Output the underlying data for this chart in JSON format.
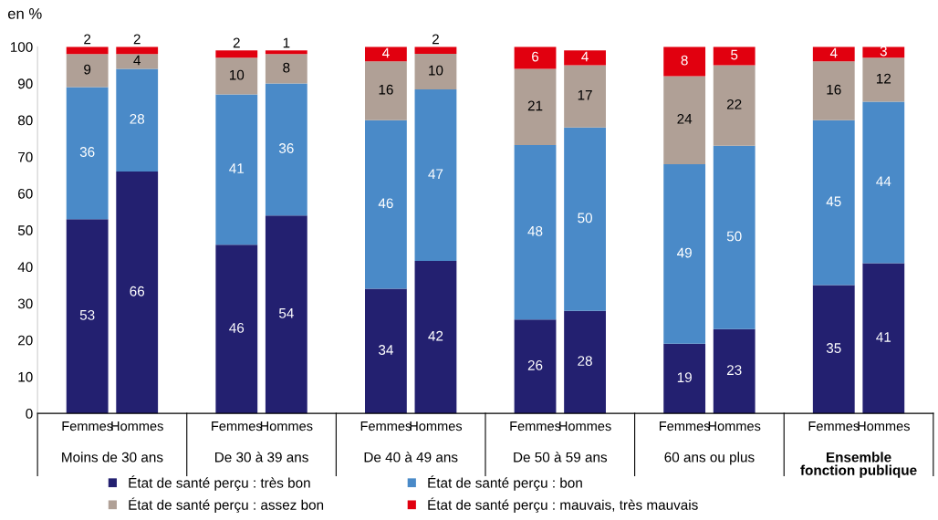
{
  "chart_data": {
    "type": "bar",
    "stacked": true,
    "ylabel": "en %",
    "categories": [
      "Femmes",
      "Hommes",
      "Femmes",
      "Hommes",
      "Femmes",
      "Hommes",
      "Femmes",
      "Hommes",
      "Femmes",
      "Hommes",
      "Femmes",
      "Hommes"
    ],
    "annotations": [
      "Moins de 30 ans",
      "De 30 à 39 ans",
      "De 40 à 49 ans",
      "De 50 à 59 ans",
      "60 ans ou plus",
      "Ensemble\nfonction publique"
    ],
    "series": [
      {
        "name": "État de santé perçu : très bon",
        "color": "#232070",
        "value_labels": [
          "53",
          "66",
          "46",
          "54",
          "34",
          "42",
          "26",
          "28",
          "19",
          "23",
          "35",
          "41"
        ],
        "values": [
          53,
          66,
          46,
          54,
          34,
          41.6,
          25.6,
          28,
          19,
          23,
          35,
          41
        ]
      },
      {
        "name": "État de santé perçu : bon",
        "color": "#4a8ac8",
        "value_labels": [
          "36",
          "28",
          "41",
          "36",
          "46",
          "47",
          "48",
          "50",
          "49",
          "50",
          "45",
          "44"
        ],
        "values": [
          36,
          28,
          41,
          36,
          46,
          46.8,
          47.6,
          50,
          49,
          50,
          45,
          44
        ]
      },
      {
        "name": "État de santé perçu : assez bon",
        "color": "#b0a096",
        "value_labels": [
          "9",
          "4",
          "10",
          "8",
          "16",
          "10",
          "21",
          "17",
          "24",
          "22",
          "16",
          "12"
        ],
        "values": [
          9,
          4,
          10,
          8,
          16,
          9.7,
          20.8,
          17,
          24,
          22,
          16,
          12
        ]
      },
      {
        "name": "État de santé perçu : mauvais, très mauvais",
        "color": "#e1000f",
        "values": [
          2,
          2,
          2,
          1,
          4,
          1.9,
          6,
          4,
          8,
          5,
          4,
          3
        ],
        "value_labels": [
          "2",
          "2",
          "2",
          "1",
          "4",
          "2",
          "6",
          "4",
          "8",
          "5",
          "4",
          "3"
        ]
      }
    ],
    "ylim": [
      0,
      100
    ],
    "yticks": [
      0,
      10,
      20,
      30,
      40,
      50,
      60,
      70,
      80,
      90,
      100
    ],
    "legend": "bottom",
    "grid": false
  }
}
